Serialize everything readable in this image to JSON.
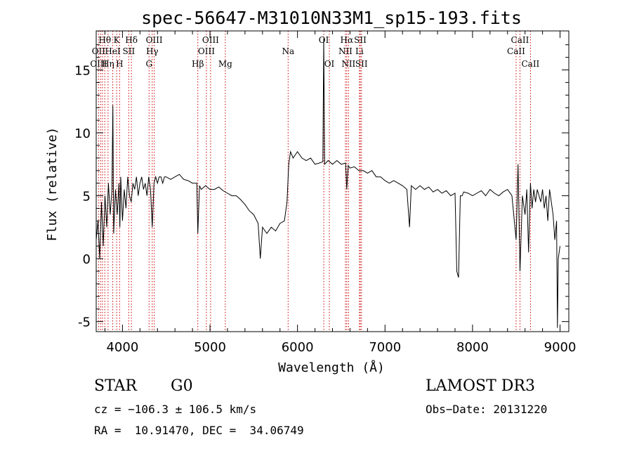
{
  "chart_data": {
    "type": "line",
    "title": "spec-56647-M31010N33M1_sp15-193.fits",
    "xlabel": "Wavelength (Å)",
    "ylabel": "Flux (relative)",
    "xlim": [
      3700,
      9100
    ],
    "ylim": [
      -5.8,
      18.1
    ],
    "xticks": [
      4000,
      5000,
      6000,
      7000,
      8000,
      9000
    ],
    "yticks": [
      -5,
      0,
      5,
      10,
      15
    ],
    "grid": false,
    "line_color": "#000000",
    "marker_color": "#cc0000",
    "spectrum": {
      "x": [
        3700,
        3720,
        3740,
        3760,
        3780,
        3800,
        3820,
        3840,
        3860,
        3880,
        3890,
        3900,
        3920,
        3940,
        3960,
        3970,
        3980,
        4000,
        4020,
        4040,
        4060,
        4080,
        4100,
        4120,
        4140,
        4160,
        4180,
        4200,
        4220,
        4240,
        4260,
        4280,
        4300,
        4320,
        4340,
        4360,
        4380,
        4400,
        4420,
        4440,
        4460,
        4480,
        4500,
        4550,
        4600,
        4650,
        4700,
        4750,
        4800,
        4850,
        4861,
        4880,
        4900,
        4950,
        5000,
        5050,
        5100,
        5150,
        5200,
        5250,
        5300,
        5350,
        5400,
        5450,
        5500,
        5550,
        5575,
        5600,
        5650,
        5700,
        5750,
        5800,
        5850,
        5880,
        5900,
        5920,
        5950,
        6000,
        6050,
        6100,
        6150,
        6200,
        6250,
        6290,
        6300,
        6310,
        6350,
        6400,
        6450,
        6500,
        6550,
        6563,
        6580,
        6600,
        6650,
        6700,
        6750,
        6800,
        6850,
        6900,
        6950,
        7000,
        7050,
        7100,
        7150,
        7200,
        7250,
        7280,
        7300,
        7350,
        7400,
        7450,
        7500,
        7550,
        7600,
        7650,
        7700,
        7750,
        7800,
        7820,
        7840,
        7860,
        7880,
        7900,
        7950,
        8000,
        8050,
        8100,
        8150,
        8200,
        8250,
        8300,
        8350,
        8400,
        8450,
        8498,
        8520,
        8542,
        8570,
        8600,
        8620,
        8640,
        8662,
        8680,
        8700,
        8720,
        8740,
        8760,
        8780,
        8800,
        8820,
        8840,
        8860,
        8880,
        8900,
        8920,
        8940,
        8960,
        8970,
        8980,
        9000
      ],
      "y": [
        1.5,
        3.0,
        0.0,
        4.5,
        1.0,
        5.0,
        2.5,
        6.0,
        3.5,
        5.5,
        12.2,
        2.0,
        5.5,
        3.5,
        6.0,
        2.5,
        6.5,
        3.0,
        5.5,
        4.0,
        6.5,
        5.0,
        4.5,
        6.0,
        5.5,
        6.5,
        5.0,
        6.0,
        6.5,
        5.5,
        6.0,
        5.0,
        6.5,
        5.5,
        2.5,
        6.0,
        6.5,
        6.0,
        6.5,
        6.5,
        6.0,
        6.5,
        6.5,
        6.3,
        6.5,
        6.7,
        6.3,
        6.2,
        6.0,
        6.0,
        2.0,
        5.8,
        5.5,
        5.8,
        5.5,
        5.5,
        5.7,
        5.4,
        5.2,
        5.0,
        5.0,
        4.7,
        4.3,
        3.8,
        3.5,
        2.8,
        0.0,
        2.5,
        2.0,
        2.5,
        2.2,
        2.8,
        3.0,
        4.5,
        7.5,
        8.5,
        8.0,
        8.5,
        8.0,
        7.8,
        8.0,
        7.5,
        7.6,
        7.7,
        17.5,
        7.5,
        7.8,
        7.5,
        7.8,
        7.5,
        7.6,
        5.5,
        7.4,
        7.2,
        7.3,
        7.0,
        7.0,
        6.8,
        7.0,
        6.5,
        6.5,
        6.2,
        6.0,
        6.2,
        6.0,
        5.8,
        5.5,
        2.5,
        5.8,
        5.5,
        5.8,
        5.5,
        5.7,
        5.3,
        5.5,
        5.2,
        5.4,
        5.0,
        5.2,
        -1.0,
        -1.5,
        5.0,
        5.0,
        5.3,
        5.2,
        5.0,
        5.2,
        5.4,
        5.0,
        5.5,
        5.2,
        5.0,
        5.3,
        5.5,
        5.0,
        1.5,
        7.5,
        -1.0,
        5.0,
        3.5,
        5.5,
        0.5,
        6.0,
        4.0,
        5.5,
        4.5,
        5.5,
        5.0,
        4.5,
        5.5,
        4.0,
        5.0,
        3.0,
        5.5,
        4.5,
        3.5,
        1.5,
        3.0,
        -5.5,
        0.0,
        1.0
      ]
    },
    "line_labels": [
      {
        "label": "Hθ",
        "row": 0,
        "lines": [
          3798
        ]
      },
      {
        "label": "K",
        "row": 0,
        "lines": [
          3934
        ]
      },
      {
        "label": "Hδ",
        "row": 0,
        "lines": [
          4102
        ]
      },
      {
        "label": "OIII",
        "row": 0,
        "lines": [
          4363
        ]
      },
      {
        "label": "OIII",
        "row": 0,
        "lines": [
          5007
        ]
      },
      {
        "label": "OI",
        "row": 0,
        "lines": [
          6300
        ]
      },
      {
        "label": "Hα",
        "row": 0,
        "lines": [
          6563
        ]
      },
      {
        "label": "SII",
        "row": 0,
        "lines": [
          6717
        ]
      },
      {
        "label": "CaII",
        "row": 0,
        "lines": [
          8542
        ]
      },
      {
        "label": "OII",
        "row": 1,
        "lines": [
          3727
        ]
      },
      {
        "label": "HeI",
        "row": 1,
        "lines": [
          3889
        ]
      },
      {
        "label": "SII",
        "row": 1,
        "lines": [
          4072
        ]
      },
      {
        "label": "Hγ",
        "row": 1,
        "lines": [
          4340
        ]
      },
      {
        "label": "OIII",
        "row": 1,
        "lines": [
          4959
        ]
      },
      {
        "label": "Na",
        "row": 1,
        "lines": [
          5893
        ]
      },
      {
        "label": "NII",
        "row": 1,
        "lines": [
          6548
        ]
      },
      {
        "label": "Li",
        "row": 1,
        "lines": [
          6708
        ]
      },
      {
        "label": "CaII",
        "row": 1,
        "lines": [
          8498
        ]
      },
      {
        "label": "OIII",
        "row": 2,
        "lines": [
          3727
        ]
      },
      {
        "label": "Hη",
        "row": 2,
        "lines": [
          3835
        ]
      },
      {
        "label": "H",
        "row": 2,
        "lines": [
          3968
        ]
      },
      {
        "label": "G",
        "row": 2,
        "lines": [
          4304
        ]
      },
      {
        "label": "Hβ",
        "row": 2,
        "lines": [
          4861
        ]
      },
      {
        "label": "Mg",
        "row": 2,
        "lines": [
          5175
        ]
      },
      {
        "label": "OI",
        "row": 2,
        "lines": [
          6364
        ]
      },
      {
        "label": "NII",
        "row": 2,
        "lines": [
          6583
        ]
      },
      {
        "label": "SII",
        "row": 2,
        "lines": [
          6731
        ]
      },
      {
        "label": "CaII",
        "row": 2,
        "lines": [
          8662
        ]
      }
    ],
    "marker_lines": [
      3727,
      3750,
      3771,
      3798,
      3835,
      3889,
      3934,
      3968,
      4072,
      4102,
      4304,
      4340,
      4363,
      4861,
      4959,
      5007,
      5175,
      5893,
      6300,
      6364,
      6548,
      6563,
      6583,
      6708,
      6717,
      6731,
      8498,
      8542,
      8662
    ]
  },
  "info": {
    "object_class": "STAR",
    "subclass": "G0",
    "survey": "LAMOST DR3",
    "redshift": "cz = −106.3 ± 106.5 km/s",
    "obs_date": "Obs−Date: 20131220",
    "coords": "RA =  10.91470, DEC =  34.06749"
  }
}
